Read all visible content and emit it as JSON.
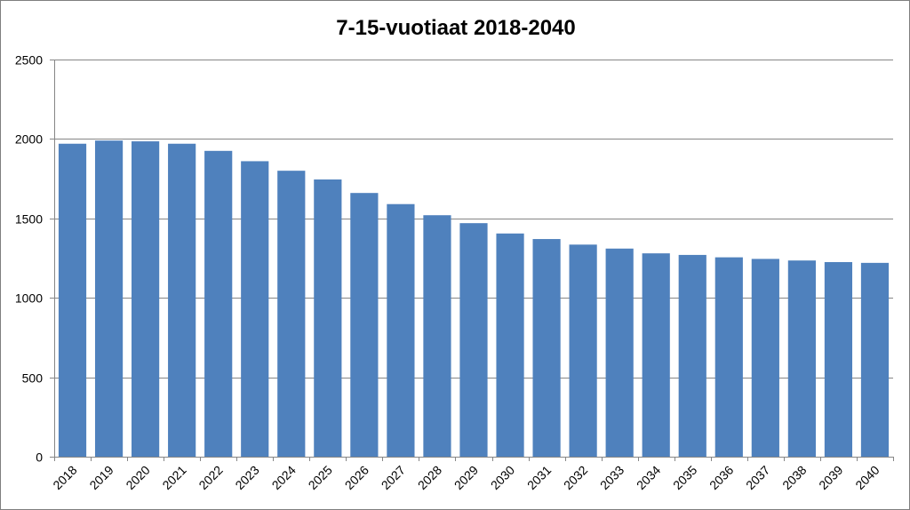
{
  "chart_data": {
    "type": "bar",
    "title": "7-15-vuotiaat 2018-2040",
    "xlabel": "",
    "ylabel": "",
    "categories": [
      "2018",
      "2019",
      "2020",
      "2021",
      "2022",
      "2023",
      "2024",
      "2025",
      "2026",
      "2027",
      "2028",
      "2029",
      "2030",
      "2031",
      "2032",
      "2033",
      "2034",
      "2035",
      "2036",
      "2037",
      "2038",
      "2039",
      "2040"
    ],
    "values": [
      1970,
      1990,
      1985,
      1970,
      1925,
      1860,
      1800,
      1745,
      1660,
      1590,
      1520,
      1470,
      1405,
      1370,
      1335,
      1310,
      1280,
      1270,
      1255,
      1245,
      1235,
      1225,
      1220
    ],
    "ylim": [
      0,
      2500
    ],
    "yticks": [
      "0",
      "500",
      "1000",
      "1500",
      "2000",
      "2500"
    ],
    "grid": true,
    "legend": "none",
    "bar_color": "#4f81bd",
    "grid_color": "#868686"
  }
}
